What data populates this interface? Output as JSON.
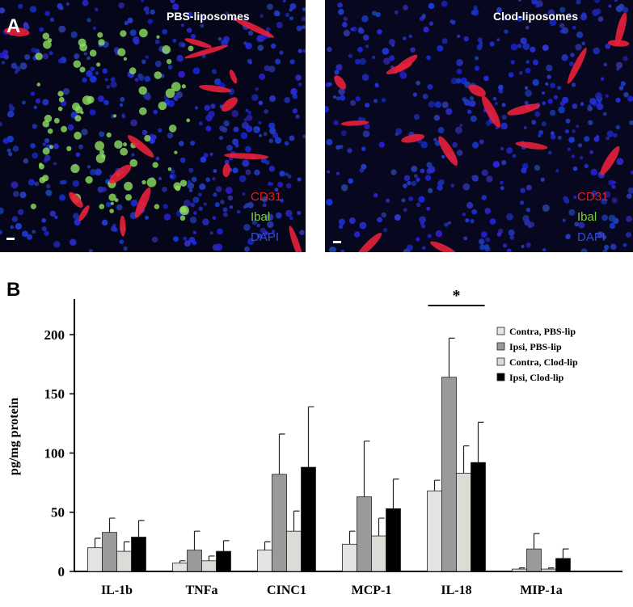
{
  "panel_a": {
    "label": "A",
    "images": [
      {
        "title": "PBS-liposomes",
        "stains": [
          "CD31",
          "Ibal",
          "DAPI"
        ]
      },
      {
        "title": "Clod-liposomes",
        "stains": [
          "CD31",
          "Ibal",
          "DAPI"
        ]
      }
    ]
  },
  "chart_data": {
    "type": "bar",
    "panel_label": "B",
    "y_label": "pg/mg protein",
    "categories": [
      "IL-1b",
      "TNFa",
      "CINC1",
      "MCP-1",
      "IL-18",
      "MIP-1a"
    ],
    "series": [
      {
        "name": "Contra, PBS-lip",
        "color": "#e4e4e4",
        "values": [
          20,
          7,
          18,
          23,
          68,
          2
        ],
        "errors": [
          8,
          2,
          7,
          11,
          9,
          1
        ]
      },
      {
        "name": "Ipsi, PBS-lip",
        "color": "#9a9a9a",
        "values": [
          33,
          18,
          82,
          63,
          164,
          19
        ],
        "errors": [
          12,
          16,
          34,
          47,
          33,
          13
        ]
      },
      {
        "name": "Contra, Clod-lip",
        "color": "#dcdcd6",
        "values": [
          17,
          9,
          34,
          30,
          83,
          2
        ],
        "errors": [
          8,
          4,
          17,
          15,
          23,
          1
        ]
      },
      {
        "name": "Ipsi, Clod-lip",
        "color": "#000000",
        "values": [
          29,
          17,
          88,
          53,
          92,
          11
        ],
        "errors": [
          14,
          9,
          51,
          25,
          34,
          8
        ]
      }
    ],
    "ylim": [
      0,
      230
    ],
    "yticks": [
      0,
      50,
      100,
      150,
      200
    ],
    "annotations": [
      "*"
    ],
    "legend": "upper right"
  }
}
